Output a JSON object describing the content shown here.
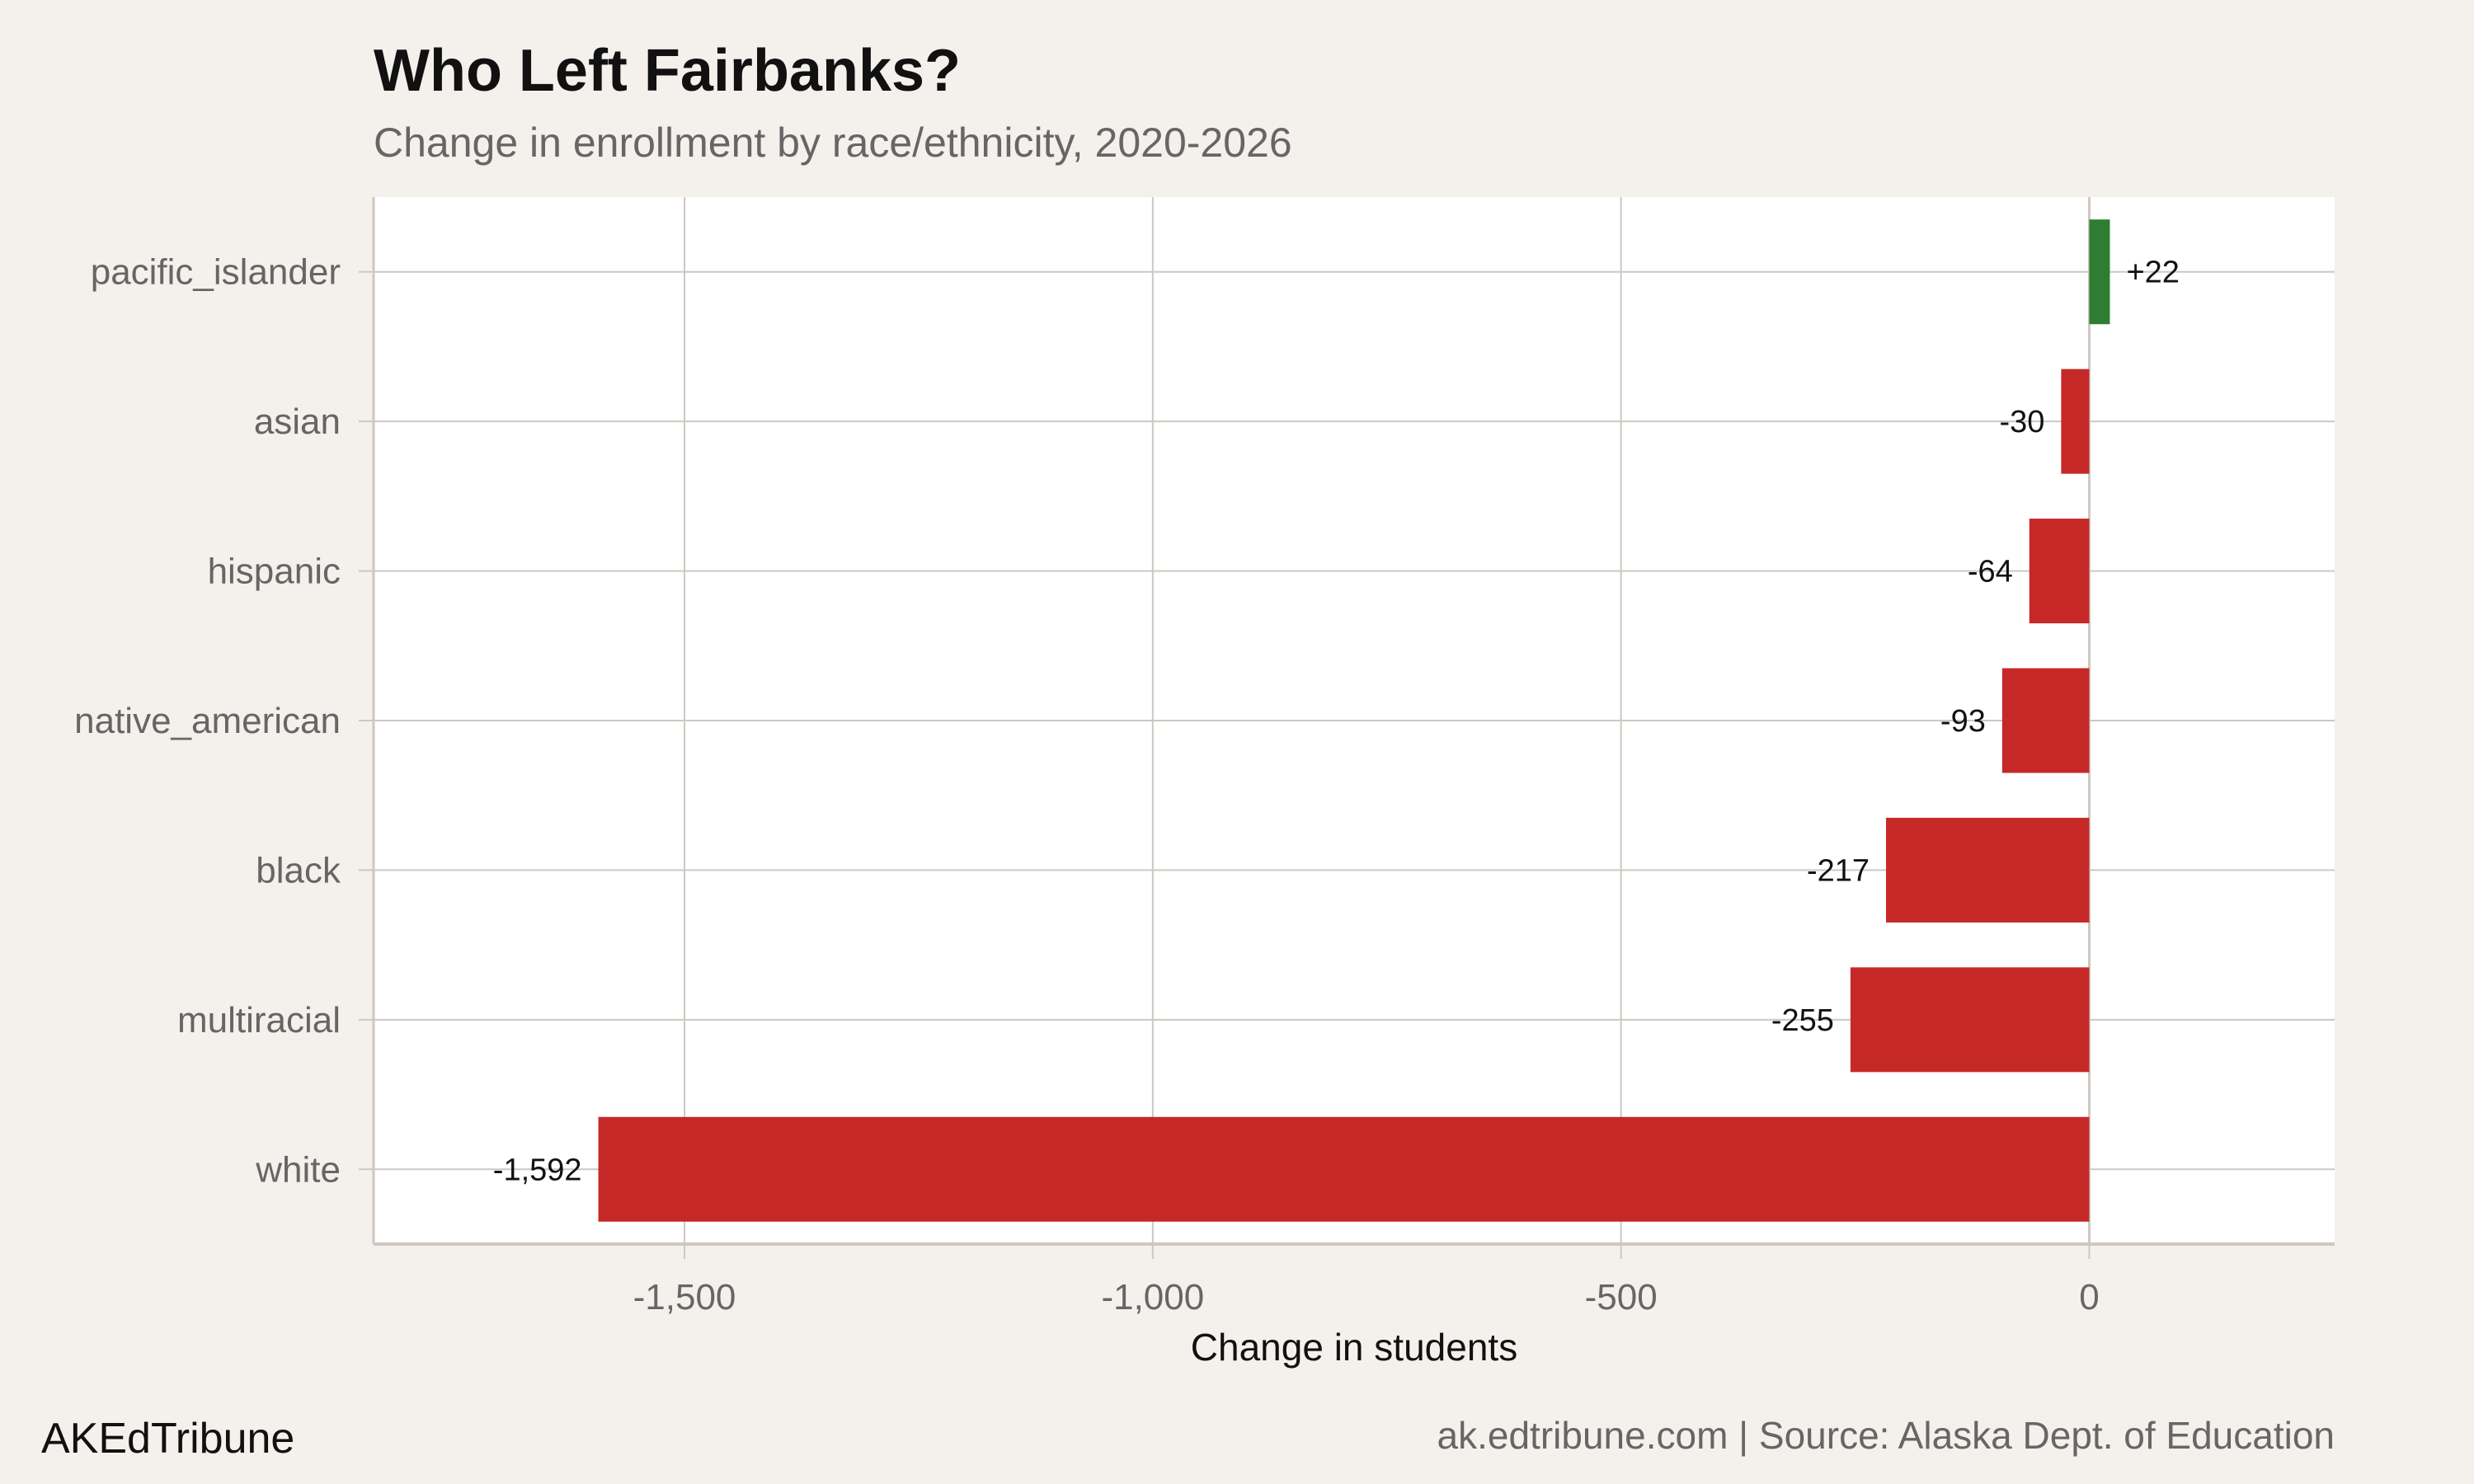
{
  "chart_data": {
    "type": "bar",
    "orientation": "horizontal",
    "title": "Who Left Fairbanks?",
    "subtitle": "Change in enrollment by race/ethnicity, 2020-2026",
    "xlabel": "Change in students",
    "ylabel": "",
    "categories": [
      "pacific_islander",
      "asian",
      "hispanic",
      "native_american",
      "black",
      "multiracial",
      "white"
    ],
    "values": [
      22,
      -30,
      -64,
      -93,
      -217,
      -255,
      -1592
    ],
    "data_labels": [
      "+22",
      "-30",
      "-64",
      "-93",
      "-217",
      "-255",
      "-1,592"
    ],
    "xlim": [
      -1832,
      262
    ],
    "xticks": [
      -1500,
      -1000,
      -500,
      0
    ],
    "xtick_labels": [
      "-1,500",
      "-1,000",
      "-500",
      "0"
    ],
    "grid": true,
    "colors": {
      "positive": "#2e7d32",
      "negative": "#c62828",
      "background": "#f4f1ec",
      "panel": "#ffffff",
      "grid": "#cdc8c0"
    }
  },
  "caption": {
    "left": "AKEdTribune",
    "right": "ak.edtribune.com | Source: Alaska Dept. of Education"
  }
}
